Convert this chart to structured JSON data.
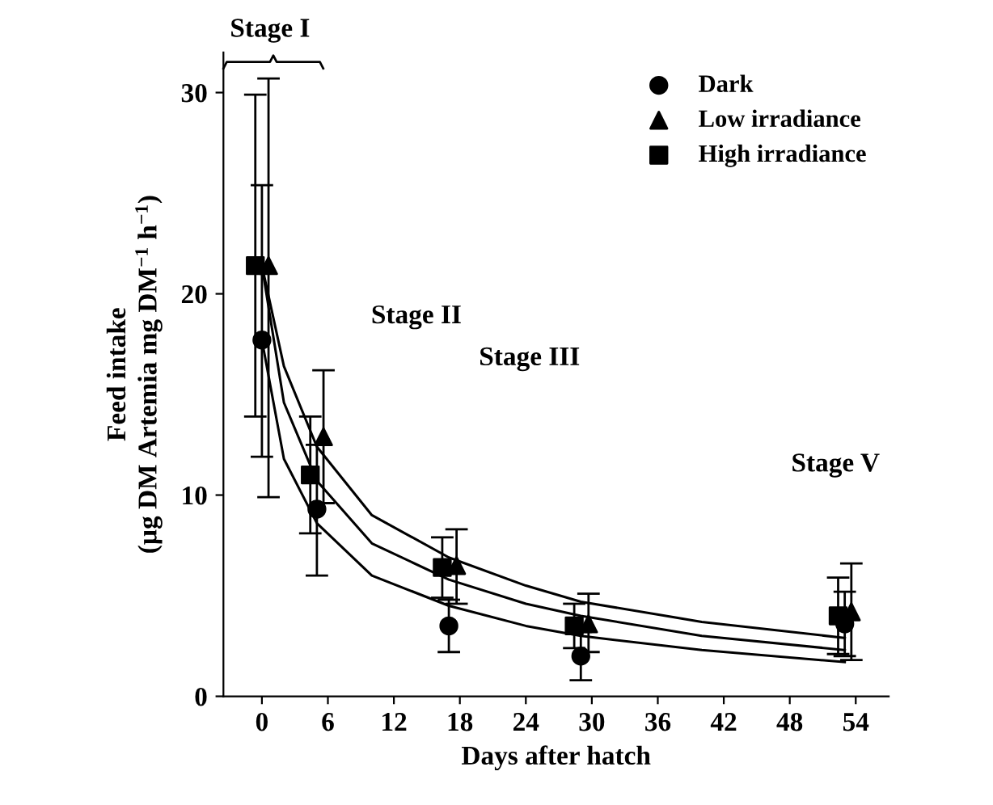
{
  "chart_data": {
    "type": "scatter",
    "xlabel": "Days after hatch",
    "ylabel": "Feed intake\n(µg DM Artemia mg DM$^{−1}$ h$^{−1}$)",
    "annotations": [
      "Stage I",
      "Stage II",
      "Stage III",
      "Stage V"
    ],
    "xlim": [
      -3.5,
      57
    ],
    "xticks": [
      0,
      6,
      12,
      18,
      24,
      30,
      36,
      42,
      48,
      54
    ],
    "ylim": [
      0,
      32
    ],
    "yticks": [
      0,
      10,
      20,
      30
    ],
    "legend": "top right",
    "grid": false,
    "series": [
      {
        "name": "Dark",
        "marker": "circle",
        "color": "#000000",
        "x": [
          0,
          5,
          17,
          29,
          53
        ],
        "values": [
          17.7,
          9.3,
          3.5,
          2.0,
          3.6
        ],
        "errors": [
          [
            11.9,
            25.4
          ],
          [
            6.0,
            12.5
          ],
          [
            2.2,
            4.8
          ],
          [
            0.8,
            3.2
          ],
          [
            2.0,
            5.2
          ]
        ]
      },
      {
        "name": "Low irradiance",
        "marker": "triangle",
        "color": "#000000",
        "x": [
          0.6,
          5.6,
          17.7,
          29.7,
          53.6
        ],
        "values": [
          21.4,
          12.9,
          6.5,
          3.6,
          4.2
        ],
        "errors": [
          [
            9.9,
            30.7
          ],
          [
            9.6,
            16.2
          ],
          [
            4.6,
            8.3
          ],
          [
            2.2,
            5.1
          ],
          [
            1.8,
            6.6
          ]
        ]
      },
      {
        "name": "High irradiance",
        "marker": "square",
        "color": "#000000",
        "x": [
          -0.6,
          4.4,
          16.4,
          28.4,
          52.4
        ],
        "values": [
          21.4,
          11.0,
          6.4,
          3.5,
          4.0
        ],
        "errors": [
          [
            13.9,
            29.9
          ],
          [
            8.1,
            13.9
          ],
          [
            4.9,
            7.9
          ],
          [
            2.4,
            4.6
          ],
          [
            2.1,
            5.9
          ]
        ]
      },
      {
        "type": "line",
        "color": "#000000",
        "x": [
          0,
          2,
          5,
          10,
          17,
          24,
          29,
          40,
          53
        ],
        "values": [
          17.7,
          11.8,
          8.6,
          6.0,
          4.5,
          3.5,
          3.0,
          2.3,
          1.7
        ]
      },
      {
        "type": "line",
        "color": "#000000",
        "x": [
          0,
          2,
          5,
          10,
          17,
          24,
          29,
          40,
          53
        ],
        "values": [
          21.4,
          14.6,
          10.7,
          7.6,
          5.8,
          4.6,
          4.0,
          3.0,
          2.3
        ]
      },
      {
        "type": "line",
        "color": "#000000",
        "x": [
          0,
          2,
          5,
          10,
          17,
          24,
          29,
          40,
          53
        ],
        "values": [
          21.4,
          16.4,
          12.4,
          9.0,
          6.9,
          5.5,
          4.7,
          3.7,
          2.9
        ]
      }
    ]
  }
}
